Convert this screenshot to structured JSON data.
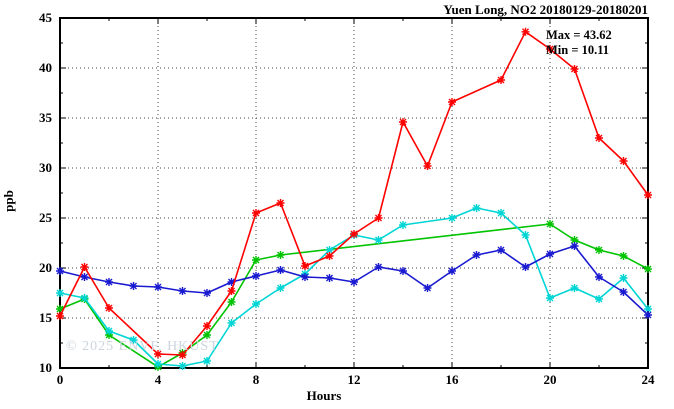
{
  "chart_data": {
    "type": "line",
    "title": "Yuen Long, NO2 20180129-20180201",
    "xlabel": "Hours",
    "ylabel": "ppb",
    "xlim": [
      0,
      24
    ],
    "ylim": [
      10,
      45
    ],
    "xticks": [
      0,
      4,
      8,
      12,
      16,
      20,
      24
    ],
    "yticks": [
      10,
      15,
      20,
      25,
      30,
      35,
      40,
      45
    ],
    "x_minor_step": 2,
    "y_minor_step": 2.5,
    "grid": "dotted-at-major-ticks",
    "legend_position": "none",
    "annotations": {
      "max_label": "Max = 43.62",
      "min_label": "Min = 10.11",
      "max": 43.62,
      "min": 10.11
    },
    "watermark": "© 2025 ENVF, HKUST",
    "series": [
      {
        "name": "green",
        "color": "#00c400",
        "points": [
          [
            0,
            15.9
          ],
          [
            1,
            16.9
          ],
          [
            2,
            13.3
          ],
          [
            4,
            10.11
          ],
          [
            5,
            11.5
          ],
          [
            6,
            13.3
          ],
          [
            7,
            16.6
          ],
          [
            8,
            20.8
          ],
          [
            9,
            21.3
          ],
          [
            20,
            24.4
          ],
          [
            21,
            22.8
          ],
          [
            22,
            21.8
          ],
          [
            23,
            21.2
          ],
          [
            24,
            19.9
          ]
        ]
      },
      {
        "name": "cyan",
        "color": "#00d5d5",
        "points": [
          [
            0,
            17.5
          ],
          [
            1,
            17.0
          ],
          [
            2,
            13.7
          ],
          [
            3,
            12.8
          ],
          [
            4,
            10.4
          ],
          [
            5,
            10.2
          ],
          [
            6,
            10.7
          ],
          [
            7,
            14.5
          ],
          [
            8,
            16.4
          ],
          [
            9,
            18.0
          ],
          [
            10,
            19.4
          ],
          [
            11,
            21.8
          ],
          [
            12,
            23.3
          ],
          [
            13,
            22.8
          ],
          [
            14,
            24.3
          ],
          [
            16,
            25.0
          ],
          [
            17,
            26.0
          ],
          [
            18,
            25.5
          ],
          [
            19,
            23.3
          ],
          [
            20,
            17.0
          ],
          [
            21,
            18.0
          ],
          [
            22,
            16.9
          ],
          [
            23,
            19.0
          ],
          [
            24,
            15.9
          ]
        ]
      },
      {
        "name": "blue",
        "color": "#1a1ad0",
        "points": [
          [
            0,
            19.7
          ],
          [
            1,
            19.1
          ],
          [
            2,
            18.6
          ],
          [
            3,
            18.2
          ],
          [
            4,
            18.1
          ],
          [
            5,
            17.7
          ],
          [
            6,
            17.5
          ],
          [
            7,
            18.6
          ],
          [
            8,
            19.2
          ],
          [
            9,
            19.8
          ],
          [
            10,
            19.1
          ],
          [
            11,
            19.0
          ],
          [
            12,
            18.6
          ],
          [
            13,
            20.1
          ],
          [
            14,
            19.7
          ],
          [
            15,
            18.0
          ],
          [
            16,
            19.7
          ],
          [
            17,
            21.3
          ],
          [
            18,
            21.8
          ],
          [
            19,
            20.1
          ],
          [
            20,
            21.4
          ],
          [
            21,
            22.2
          ],
          [
            22,
            19.1
          ],
          [
            23,
            17.6
          ],
          [
            24,
            15.3
          ]
        ]
      },
      {
        "name": "red",
        "color": "#ff0000",
        "points": [
          [
            0,
            15.2
          ],
          [
            1,
            20.1
          ],
          [
            2,
            16.0
          ],
          [
            4,
            11.4
          ],
          [
            5,
            11.3
          ],
          [
            6,
            14.2
          ],
          [
            7,
            17.7
          ],
          [
            8,
            25.5
          ],
          [
            9,
            26.5
          ],
          [
            10,
            20.2
          ],
          [
            11,
            21.2
          ],
          [
            12,
            23.4
          ],
          [
            13,
            25.0
          ],
          [
            14,
            34.6
          ],
          [
            15,
            30.2
          ],
          [
            16,
            36.6
          ],
          [
            18,
            38.8
          ],
          [
            19,
            43.62
          ],
          [
            20,
            41.9
          ],
          [
            21,
            39.9
          ],
          [
            22,
            33.0
          ],
          [
            23,
            30.7
          ],
          [
            24,
            27.3
          ]
        ]
      }
    ]
  }
}
